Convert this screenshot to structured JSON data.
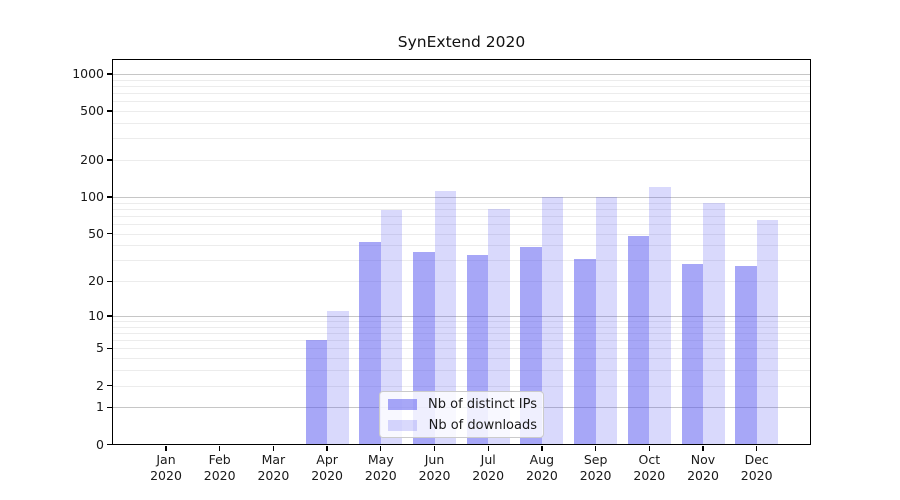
{
  "chart_data": {
    "type": "bar",
    "title": "SynExtend 2020",
    "year_label": "2020",
    "categories": [
      "Jan",
      "Feb",
      "Mar",
      "Apr",
      "May",
      "Jun",
      "Jul",
      "Aug",
      "Sep",
      "Oct",
      "Nov",
      "Dec"
    ],
    "series": [
      {
        "name": "Nb of distinct IPs",
        "color": "rgba(80,80,240,0.50)",
        "values": [
          0,
          0,
          0,
          6,
          43,
          35,
          33,
          39,
          31,
          48,
          28,
          27
        ]
      },
      {
        "name": "Nb of downloads",
        "color": "rgba(80,80,240,0.22)",
        "values": [
          0,
          0,
          0,
          11,
          79,
          112,
          80,
          101,
          101,
          120,
          89,
          65
        ]
      }
    ],
    "yscale": "log1p",
    "ylim": [
      0,
      1300
    ],
    "yticks": [
      1000,
      500,
      200,
      100,
      50,
      20,
      10,
      5,
      2,
      1,
      0
    ],
    "grid": "horizontal",
    "legend_position": "inside-bottom-center",
    "colors": {
      "axis": "#000000",
      "grid_minor": "#ececec",
      "grid_major": "#c6c6c6"
    }
  }
}
